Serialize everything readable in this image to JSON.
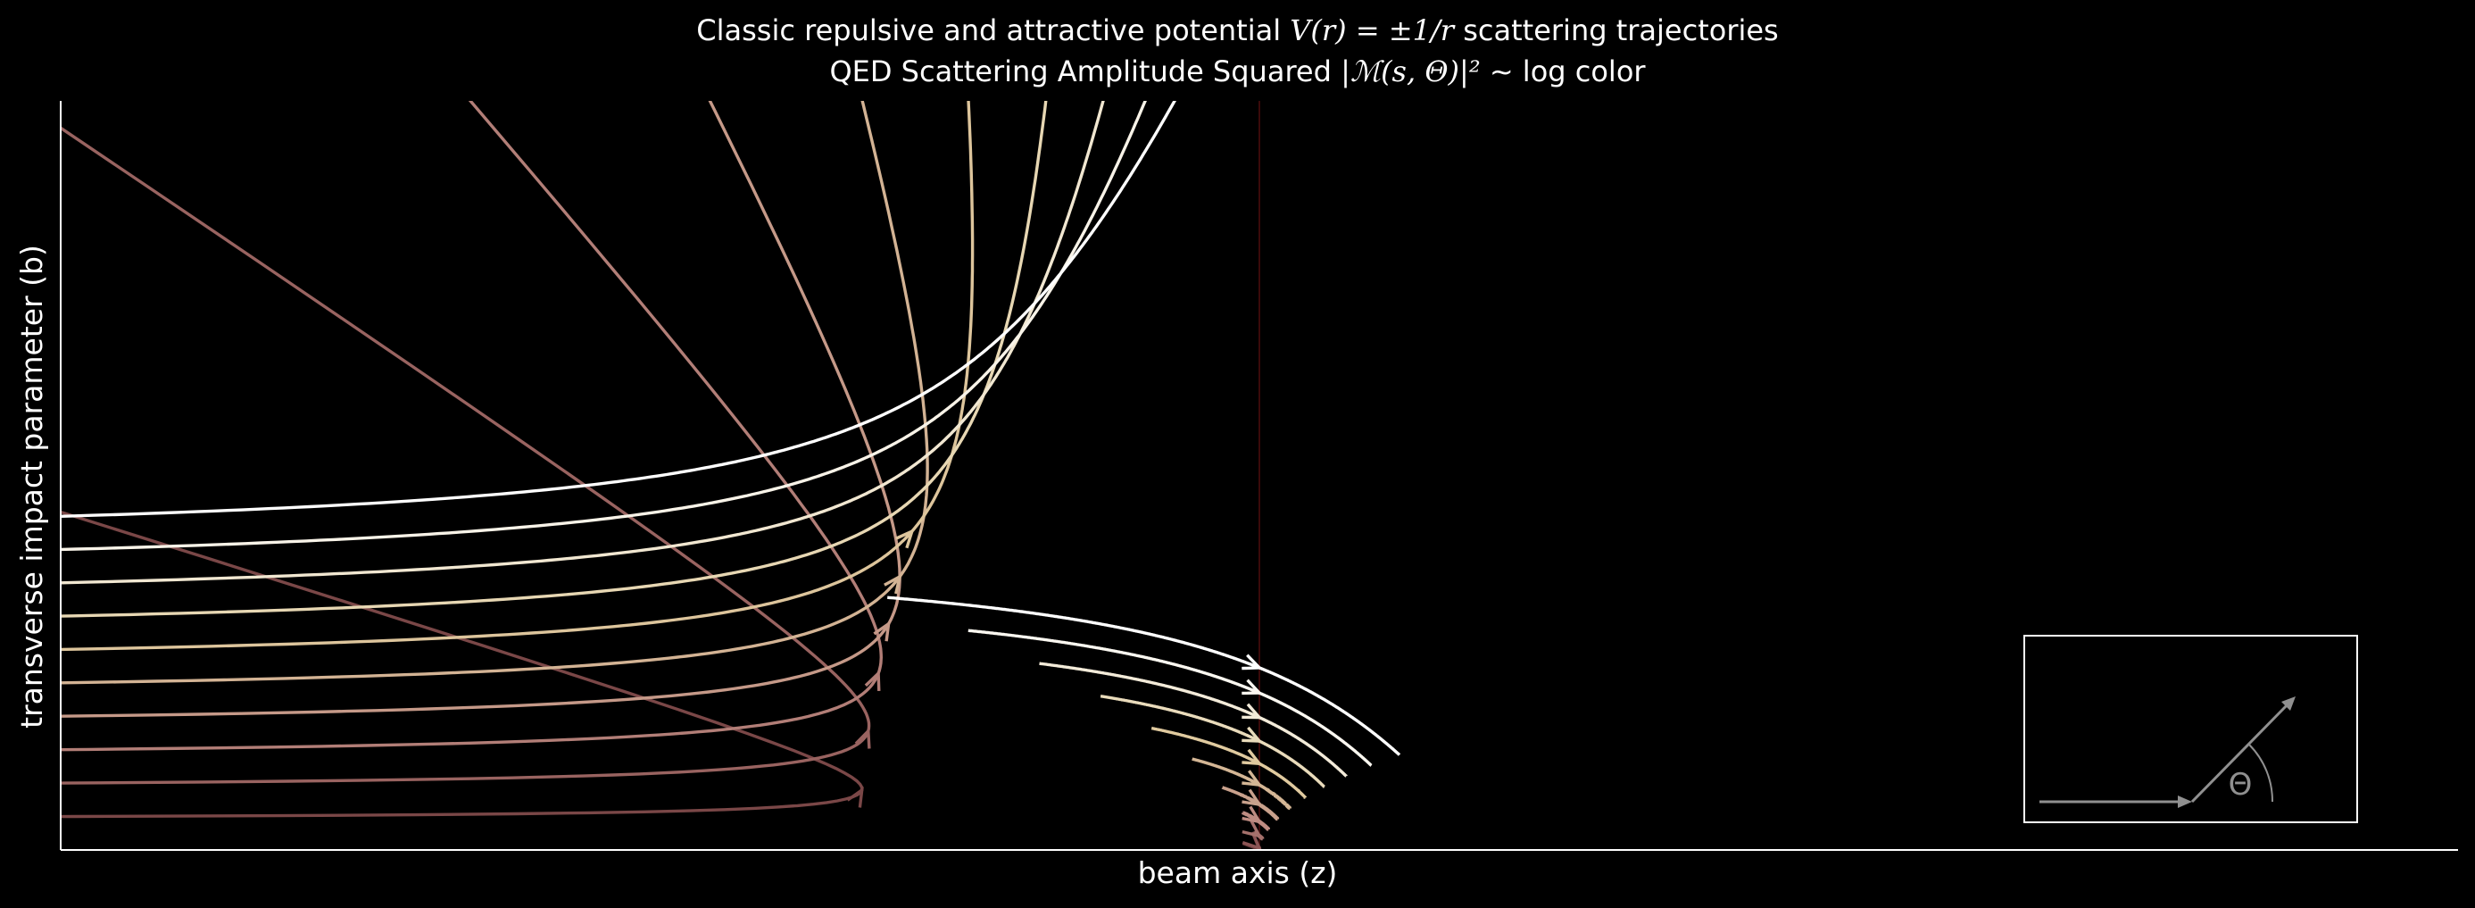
{
  "chart_data": {
    "type": "line",
    "title_parts": {
      "before": "Classic repulsive and attractive potential ",
      "formula": "V(r) = ±1/r",
      "after": " scattering trajectories"
    },
    "subtitle_parts": {
      "before": "QED Scattering Amplitude Squared ",
      "formula": "|ℳ(s, Θ)|²",
      "after": " ~ log color"
    },
    "xlabel": "beam axis (z)",
    "ylabel": "transverse impact parameter (b)",
    "xlim": [
      -6.0,
      6.0
    ],
    "ylim": [
      0.0,
      3.7
    ],
    "x_ticks": [],
    "y_ticks": [],
    "grid": false,
    "legend": "none",
    "background": "#000000",
    "colormap": "pink",
    "scatterer_z": 0.0,
    "repulsive_series": {
      "charge": "repulsive",
      "impact_parameters": [
        0.15,
        0.3,
        0.45,
        0.6,
        0.75,
        0.9,
        1.05,
        1.2,
        1.35,
        1.5
      ],
      "amplitude_log_color": [
        0.25,
        0.35,
        0.45,
        0.55,
        0.65,
        0.72,
        0.8,
        0.88,
        0.94,
        1.0
      ]
    },
    "attractive_series": {
      "charge": "attractive",
      "impact_parameters": [
        0.05,
        0.1,
        0.3,
        0.45,
        0.6,
        0.75,
        0.9,
        1.05,
        1.2,
        1.35,
        1.5
      ],
      "amplitude_log_color": [
        0.2,
        0.3,
        0.4,
        0.5,
        0.58,
        0.66,
        0.74,
        0.82,
        0.9,
        0.96,
        1.0
      ]
    },
    "inset": {
      "description": "incoming beam deflected by angle",
      "angle_symbol": "Θ",
      "angle_degrees": 45,
      "color": "#909090"
    }
  }
}
